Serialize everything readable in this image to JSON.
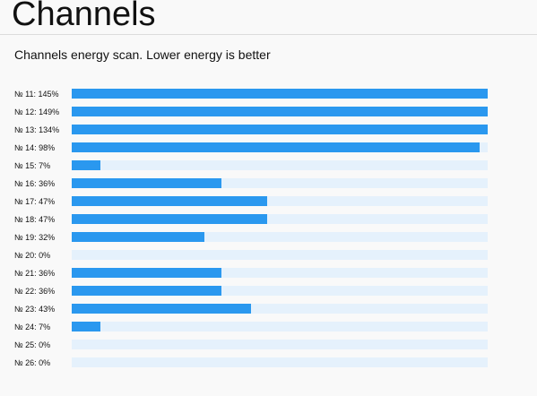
{
  "header": {
    "title": "Channels"
  },
  "subtitle": "Channels energy scan. Lower energy is better",
  "colors": {
    "bar_fill": "#2a98ef",
    "bar_track": "#e5f1fc"
  },
  "channels": [
    {
      "label": "№ 11: 145%",
      "energy_percent": 145
    },
    {
      "label": "№ 12: 149%",
      "energy_percent": 149
    },
    {
      "label": "№ 13: 134%",
      "energy_percent": 134
    },
    {
      "label": "№ 14: 98%",
      "energy_percent": 98
    },
    {
      "label": "№ 15: 7%",
      "energy_percent": 7
    },
    {
      "label": "№ 16: 36%",
      "energy_percent": 36
    },
    {
      "label": "№ 17: 47%",
      "energy_percent": 47
    },
    {
      "label": "№ 18: 47%",
      "energy_percent": 47
    },
    {
      "label": "№ 19: 32%",
      "energy_percent": 32
    },
    {
      "label": "№ 20: 0%",
      "energy_percent": 0
    },
    {
      "label": "№ 21: 36%",
      "energy_percent": 36
    },
    {
      "label": "№ 22: 36%",
      "energy_percent": 36
    },
    {
      "label": "№ 23: 43%",
      "energy_percent": 43
    },
    {
      "label": "№ 24: 7%",
      "energy_percent": 7
    },
    {
      "label": "№ 25: 0%",
      "energy_percent": 0
    },
    {
      "label": "№ 26: 0%",
      "energy_percent": 0
    }
  ]
}
